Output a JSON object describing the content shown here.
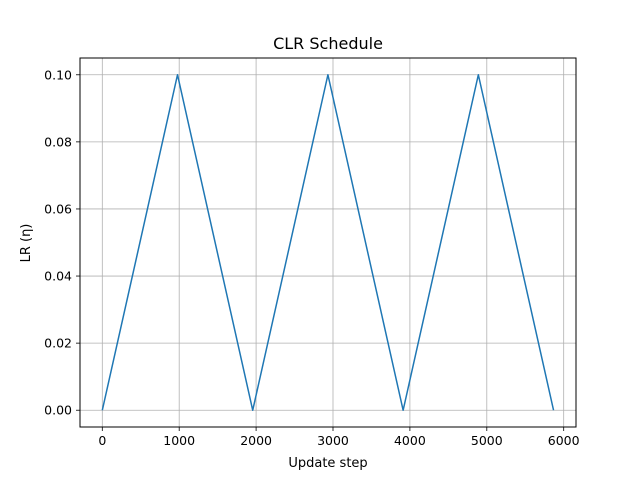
{
  "chart_data": {
    "type": "line",
    "title": "CLR Schedule",
    "xlabel": "Update step",
    "ylabel": "LR (η)",
    "xlim": [
      -290,
      6160
    ],
    "ylim": [
      -0.005,
      0.105
    ],
    "x_ticks": [
      0,
      1000,
      2000,
      3000,
      4000,
      5000,
      6000
    ],
    "y_ticks": [
      0.0,
      0.02,
      0.04,
      0.06,
      0.08,
      0.1
    ],
    "x_tick_labels": [
      "0",
      "1000",
      "2000",
      "3000",
      "4000",
      "5000",
      "6000"
    ],
    "y_tick_labels": [
      "0.00",
      "0.02",
      "0.04",
      "0.06",
      "0.08",
      "0.10"
    ],
    "grid": true,
    "line_color": "#1f77b4",
    "grid_color": "#b0b0b0",
    "series": [
      {
        "x": [
          0,
          978,
          1956,
          2934,
          3912,
          4890,
          5868
        ],
        "y": [
          0.0,
          0.1,
          0.0,
          0.1,
          0.0,
          0.1,
          0.0
        ]
      }
    ]
  }
}
